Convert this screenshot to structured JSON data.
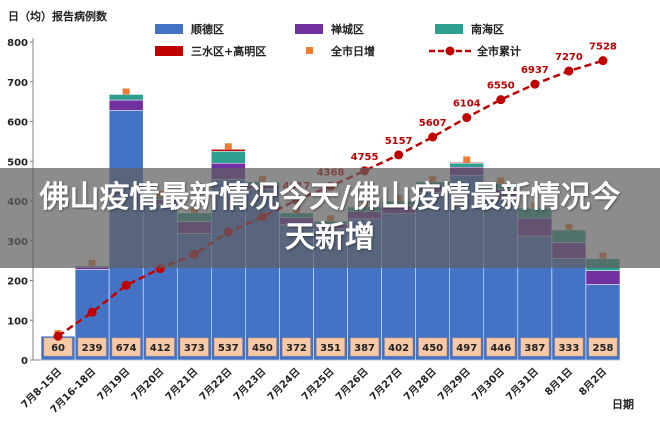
{
  "banner": {
    "text": "佛山疫情最新情况今天/佛山疫情最新情况今天新增"
  },
  "chart_data": {
    "type": "bar",
    "stacked": true,
    "ylabel": "日（均）报告病例数",
    "xlabel": "日期",
    "ylim": [
      0,
      800
    ],
    "yticks": [
      0,
      100,
      200,
      300,
      400,
      500,
      600,
      700,
      800
    ],
    "grid": false,
    "legend_position": "top",
    "categories": [
      "7月8-15日",
      "7月16-18日",
      "7月19日",
      "7月20日",
      "7月21日",
      "7月22日",
      "7月23日",
      "7月24日",
      "7月25日",
      "7月26日",
      "7月27日",
      "7月28日",
      "7月29日",
      "7月30日",
      "7月31日",
      "8月1日",
      "8月2日"
    ],
    "series": [
      {
        "name": "顺德区",
        "color": "#4472C4",
        "values": [
          60,
          228,
          628,
          392,
          318,
          455,
          430,
          340,
          330,
          355,
          368,
          422,
          465,
          405,
          312,
          255,
          190
        ]
      },
      {
        "name": "禅城区",
        "color": "#7030A0",
        "values": [
          0,
          6,
          26,
          12,
          30,
          40,
          10,
          18,
          12,
          18,
          20,
          16,
          20,
          25,
          45,
          40,
          35
        ]
      },
      {
        "name": "南海区",
        "color": "#2E9E8E",
        "values": [
          0,
          3,
          14,
          6,
          22,
          30,
          8,
          12,
          7,
          12,
          12,
          10,
          10,
          14,
          25,
          32,
          30
        ]
      },
      {
        "name": "三水区+高明区",
        "color": "#C00000",
        "values": [
          0,
          0,
          0,
          0,
          0,
          5,
          0,
          0,
          0,
          0,
          0,
          0,
          2,
          0,
          0,
          0,
          0
        ]
      }
    ],
    "daily_total": {
      "name": "全市日增",
      "color": "#ED7D31",
      "values": [
        60,
        239,
        674,
        412,
        373,
        537,
        450,
        372,
        351,
        387,
        402,
        450,
        497,
        446,
        387,
        333,
        258
      ]
    },
    "cumulative": {
      "name": "全市累计",
      "color": "#C00000",
      "values": [
        60,
        120,
        188,
        230,
        266,
        322,
        360,
        402,
        437,
        476,
        516,
        561,
        610,
        655,
        694,
        727,
        753
      ],
      "labels": [
        "",
        "",
        "",
        "",
        "",
        "",
        "",
        "4017",
        "4368",
        "4755",
        "5157",
        "5607",
        "6104",
        "6550",
        "6937",
        "7270",
        "7528"
      ]
    }
  }
}
